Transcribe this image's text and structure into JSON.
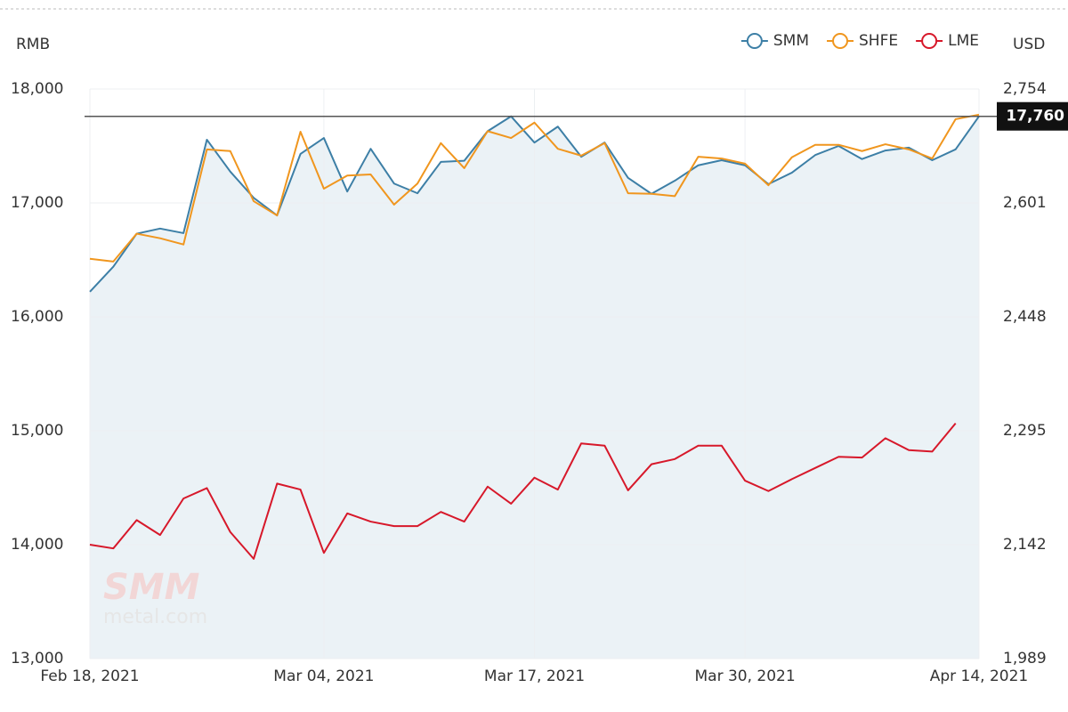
{
  "chart_data": {
    "type": "line",
    "y_label": "RMB",
    "y2_label": "USD",
    "watermark": [
      "SMM",
      "metal.com"
    ],
    "categories": [
      "Feb 18, 2021",
      null,
      null,
      null,
      null,
      null,
      null,
      null,
      null,
      null,
      "Mar 04, 2021",
      null,
      null,
      null,
      null,
      null,
      null,
      null,
      null,
      "Mar 17, 2021",
      null,
      null,
      null,
      null,
      null,
      null,
      null,
      null,
      "Mar 30, 2021",
      null,
      null,
      null,
      null,
      null,
      null,
      null,
      null,
      null,
      "Apr 14, 2021"
    ],
    "series": [
      {
        "name": "SMM",
        "color": "#3d7fa6",
        "area": true,
        "values": [
          16220,
          16440,
          16730,
          16775,
          16735,
          17555,
          17275,
          17045,
          16890,
          17430,
          17570,
          17100,
          17475,
          17170,
          17085,
          17360,
          17370,
          17630,
          17760,
          17530,
          17670,
          17405,
          17530,
          17220,
          17080,
          17195,
          17330,
          17375,
          17330,
          17165,
          17265,
          17420,
          17500,
          17385,
          17460,
          17485,
          17375,
          17470,
          17760
        ]
      },
      {
        "name": "SHFE",
        "color": "#f0961e",
        "values": [
          16510,
          16485,
          16730,
          16690,
          16635,
          17470,
          17455,
          17015,
          16890,
          17625,
          17125,
          17240,
          17250,
          16985,
          17170,
          17525,
          17305,
          17630,
          17570,
          17705,
          17475,
          17415,
          17525,
          17085,
          17080,
          17060,
          17405,
          17390,
          17345,
          17155,
          17400,
          17510,
          17510,
          17455,
          17515,
          17470,
          17390,
          17735,
          17775
        ]
      },
      {
        "name": "LME",
        "color": "#d7182a",
        "axis": "y2",
        "values": [
          2142,
          2137,
          2175,
          2155,
          2204,
          2218,
          2159,
          2123,
          2224,
          2216,
          2131,
          2184,
          2173,
          2167,
          2167,
          2186,
          2173,
          2220,
          2197,
          2232,
          2216,
          2278,
          2275,
          2215,
          2250,
          2257,
          2275,
          2275,
          2228,
          2214,
          2230,
          2245,
          2260,
          2259,
          2285,
          2269,
          2267,
          2305,
          null
        ]
      }
    ],
    "ylim": [
      13000,
      18000
    ],
    "yticks": [
      {
        "value": 13000,
        "label": "13,000"
      },
      {
        "value": 14000,
        "label": "14,000"
      },
      {
        "value": 15000,
        "label": "15,000"
      },
      {
        "value": 16000,
        "label": "16,000"
      },
      {
        "value": 17000,
        "label": "17,000"
      },
      {
        "value": 18000,
        "label": "18,000"
      }
    ],
    "y2lim": [
      1989,
      2754
    ],
    "y2ticks": [
      {
        "value": 1989,
        "label": "1,989"
      },
      {
        "value": 2142,
        "label": "2,142"
      },
      {
        "value": 2295,
        "label": "2,295"
      },
      {
        "value": 2448,
        "label": "2,448"
      },
      {
        "value": 2601,
        "label": "2,601"
      },
      {
        "value": 2754,
        "label": "2,754"
      }
    ],
    "reference_line": {
      "value": 17760,
      "label": "17,760"
    },
    "grid": true,
    "legend": "top-right"
  }
}
